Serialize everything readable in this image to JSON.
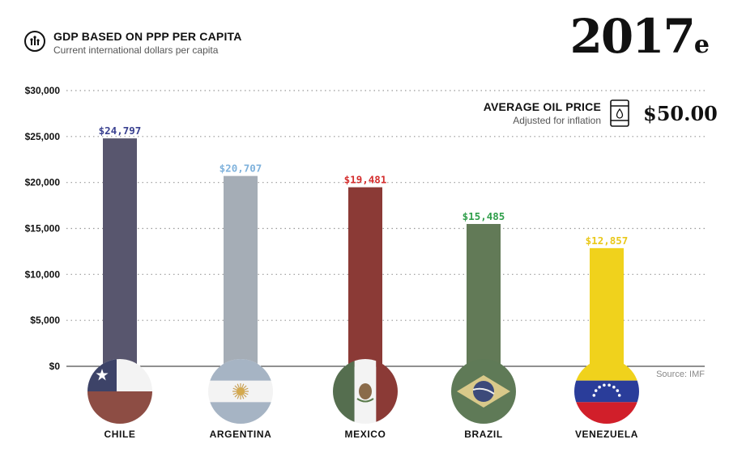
{
  "header": {
    "title": "GDP BASED ON PPP PER CAPITA",
    "subtitle": "Current international dollars per capita",
    "icon": "chart-icon"
  },
  "year": {
    "main": "2017",
    "suffix": "e"
  },
  "oil": {
    "title": "AVERAGE OIL PRICE",
    "subtitle": "Adjusted for inflation",
    "price": "$50.00",
    "icon": "oil-barrel-icon"
  },
  "source": "Source: IMF",
  "chart_data": {
    "type": "bar",
    "title": "GDP BASED ON PPP PER CAPITA",
    "subtitle": "Current international dollars per capita",
    "categories": [
      "CHILE",
      "ARGENTINA",
      "MEXICO",
      "BRAZIL",
      "VENEZUELA"
    ],
    "values": [
      24797,
      20707,
      19481,
      15485,
      12857
    ],
    "value_labels": [
      "$24,797",
      "$20,707",
      "$19,481",
      "$15,485",
      "$12,857"
    ],
    "colors": [
      "#58566e",
      "#a5adb6",
      "#8b3a36",
      "#627a57",
      "#f0d21c"
    ],
    "label_colors": [
      "#3a4190",
      "#7fb2dc",
      "#d42e2e",
      "#2f9e4a",
      "#e9c81a"
    ],
    "ylim": [
      0,
      30000
    ],
    "yticks": [
      0,
      5000,
      10000,
      15000,
      20000,
      25000,
      30000
    ],
    "ytick_labels": [
      "$0",
      "$5,000",
      "$10,000",
      "$15,000",
      "$20,000",
      "$25,000",
      "$30,000"
    ],
    "grid": true,
    "flag_icons": [
      "chile-flag-icon",
      "argentina-flag-icon",
      "mexico-flag-icon",
      "brazil-flag-icon",
      "venezuela-flag-icon"
    ]
  }
}
